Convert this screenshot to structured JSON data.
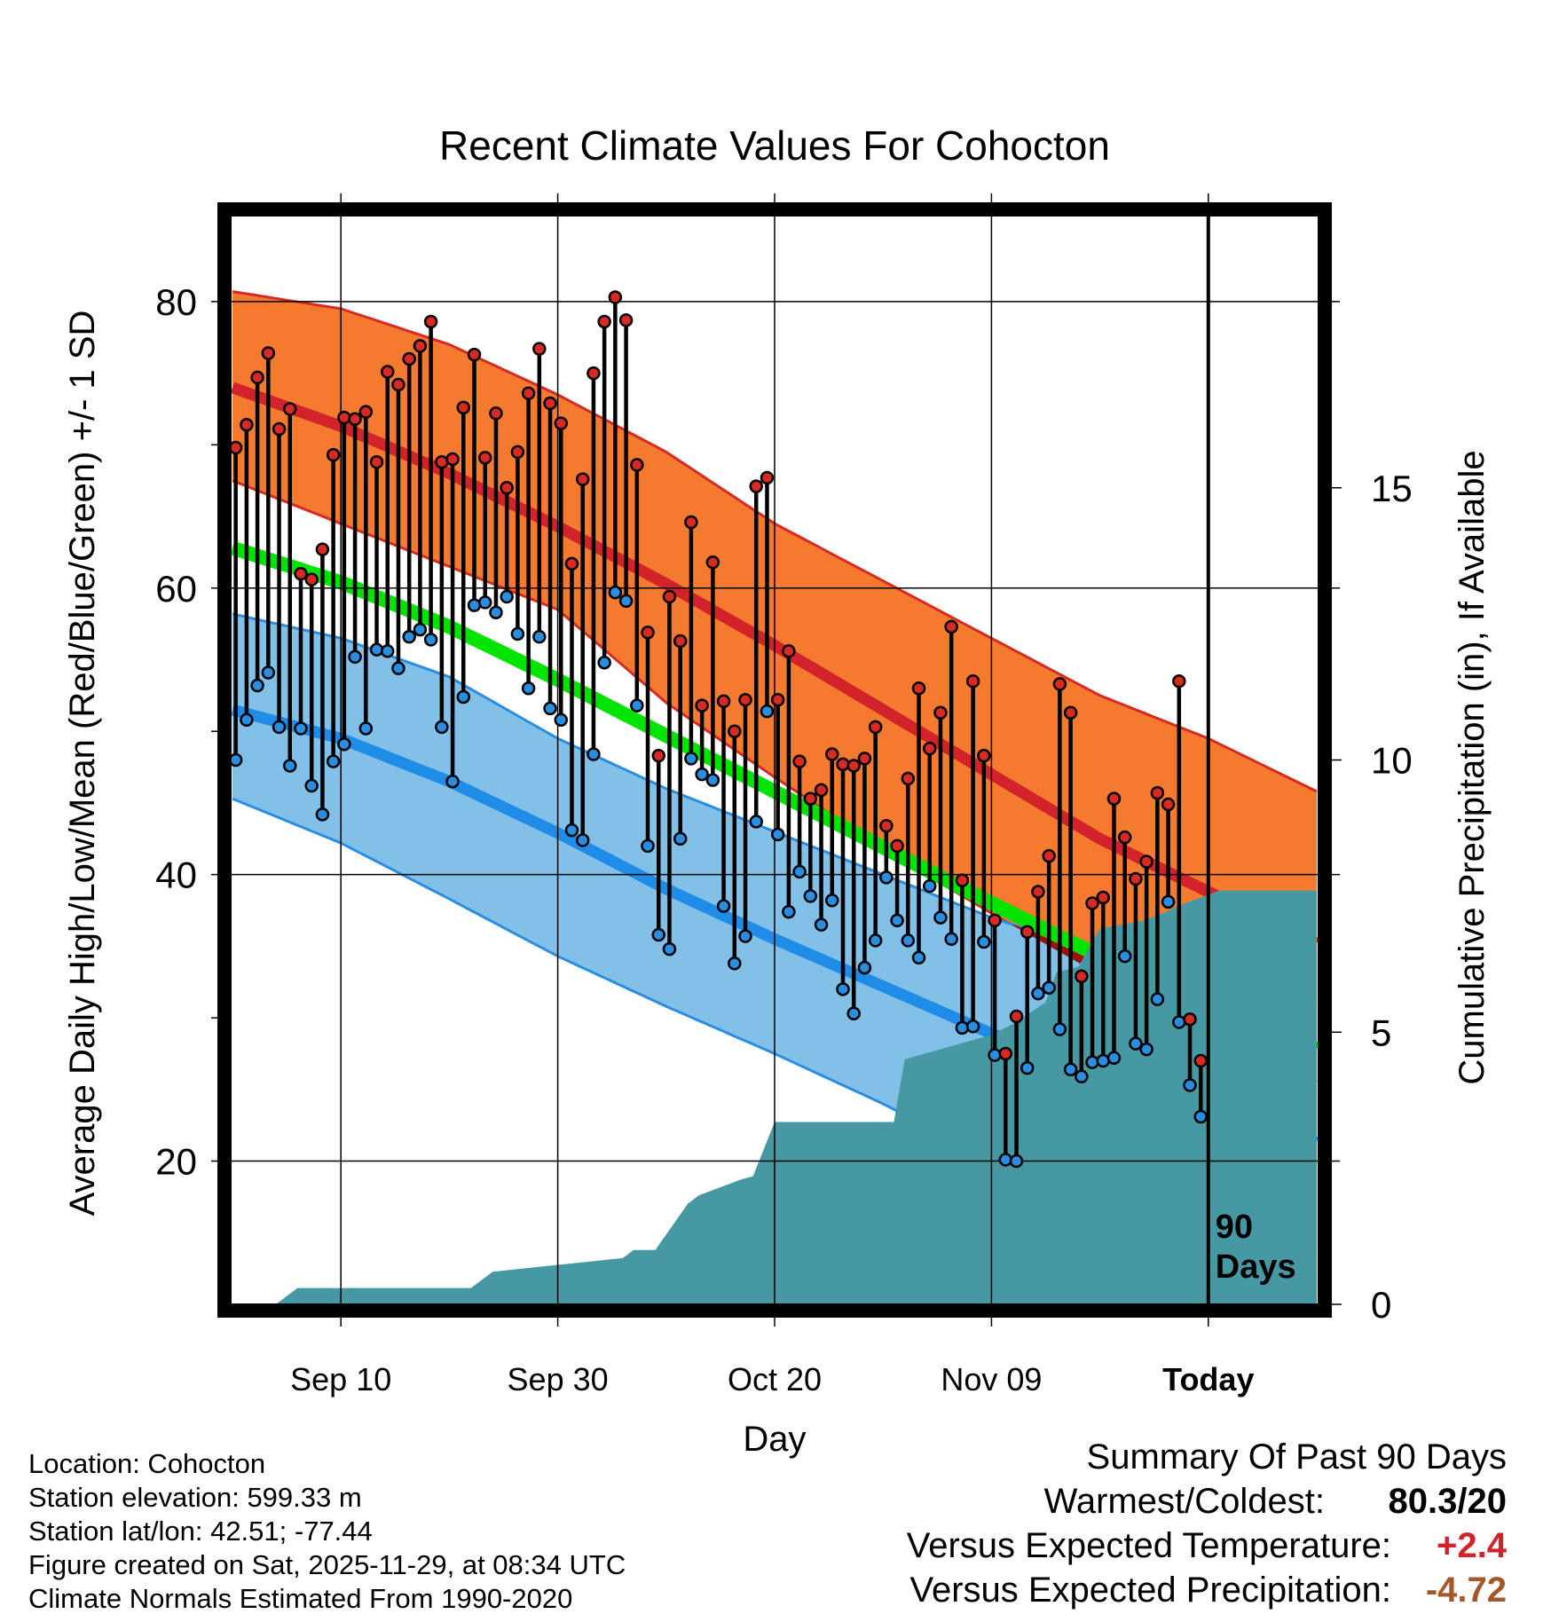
{
  "chart_data": {
    "type": "line",
    "title": "Recent Climate Values For Cohocton",
    "xlabel": "Day",
    "ylabel": "Average Daily High/Low/Mean (Red/Blue/Green) +/- 1 SD",
    "y2label": "Cumulative Precipitation (in), If Available",
    "ylim": [
      10,
      86
    ],
    "y2lim": [
      0,
      20
    ],
    "day_range": [
      0,
      100
    ],
    "x_tick_days": [
      10,
      30,
      50,
      70,
      90
    ],
    "x_tick_labels": [
      "Sep 10",
      "Sep 30",
      "Oct 20",
      "Nov 09",
      "Today"
    ],
    "y_major_ticks": [
      20,
      40,
      60,
      80
    ],
    "y2_ticks": [
      0,
      5,
      10,
      15
    ],
    "today_marker_day": 90,
    "today_marker_label": [
      "90",
      "Days"
    ],
    "normals": {
      "days": [
        0,
        10,
        20,
        30,
        40,
        50,
        60,
        70,
        80,
        90,
        100
      ],
      "high_mean": [
        74.0,
        71.3,
        68.0,
        64.3,
        60.3,
        56.0,
        51.5,
        47.0,
        42.5,
        38.8,
        35.2
      ],
      "high_upper": [
        80.7,
        79.5,
        77.0,
        73.5,
        69.5,
        64.5,
        60.5,
        56.5,
        52.5,
        49.5,
        45.8
      ],
      "high_lower": [
        67.5,
        64.5,
        61.5,
        58.5,
        52.0,
        46.8,
        41.8,
        37.3,
        33.0,
        29.2,
        25.5
      ],
      "low_mean": [
        51.5,
        49.5,
        46.5,
        42.9,
        39.0,
        35.5,
        32.2,
        28.9,
        26.0,
        23.2,
        21.3
      ],
      "low_upper": [
        58.2,
        56.5,
        53.8,
        49.5,
        46.0,
        43.0,
        40.0,
        37.0,
        34.5,
        33.0,
        31.0
      ],
      "low_lower": [
        45.3,
        42.2,
        38.3,
        34.3,
        30.8,
        27.5,
        24.0,
        20.2,
        17.5,
        15.0,
        12.8
      ],
      "mean": [
        62.8,
        60.4,
        57.3,
        53.6,
        49.7,
        45.8,
        41.9,
        38.0,
        34.3,
        31.0,
        27.8
      ]
    },
    "daily_highs": [
      69.8,
      71.4,
      74.7,
      76.4,
      71.1,
      72.5,
      61.0,
      60.6,
      62.7,
      69.3,
      71.9,
      71.8,
      72.3,
      68.8,
      75.1,
      74.2,
      76.0,
      76.9,
      78.6,
      68.8,
      69.0,
      72.6,
      76.3,
      69.1,
      72.2,
      67.0,
      69.5,
      73.6,
      76.7,
      72.9,
      71.5,
      61.7,
      67.6,
      75.0,
      78.6,
      80.3,
      78.7,
      68.6,
      56.9,
      48.3,
      59.4,
      56.3,
      64.6,
      51.8,
      61.8,
      52.1,
      50.0,
      52.2,
      67.1,
      67.7,
      52.2,
      55.6,
      47.9,
      45.3,
      45.9,
      48.4,
      47.7,
      47.6,
      48.1,
      50.3,
      43.4,
      42.0,
      46.7,
      53.0,
      48.8,
      51.3,
      57.3,
      39.6,
      53.5,
      48.3,
      36.8,
      27.5,
      30.1,
      36.0,
      38.8,
      41.3,
      53.3,
      51.3,
      32.9,
      38.0,
      38.4,
      45.3,
      42.6,
      39.7,
      40.9,
      45.7,
      44.9,
      53.5,
      29.9,
      27.0
    ],
    "daily_lows": [
      48.0,
      50.8,
      53.2,
      54.1,
      50.3,
      47.6,
      50.2,
      46.2,
      44.2,
      47.9,
      49.1,
      55.2,
      50.2,
      55.7,
      55.6,
      54.4,
      56.6,
      57.1,
      56.4,
      50.3,
      46.5,
      52.4,
      58.8,
      59.0,
      58.3,
      59.4,
      56.8,
      53.0,
      56.6,
      51.6,
      50.8,
      43.1,
      42.4,
      48.4,
      54.8,
      59.7,
      59.1,
      51.8,
      42.0,
      35.8,
      34.8,
      42.5,
      48.1,
      47.0,
      46.6,
      37.8,
      33.8,
      35.7,
      43.7,
      51.4,
      42.8,
      37.4,
      40.2,
      38.5,
      36.5,
      38.2,
      32.0,
      30.3,
      33.5,
      35.4,
      39.8,
      36.8,
      35.4,
      34.2,
      39.2,
      37.0,
      35.5,
      29.3,
      29.4,
      35.3,
      27.4,
      20.1,
      20.0,
      26.5,
      31.7,
      32.1,
      29.2,
      26.4,
      25.9,
      26.9,
      27.0,
      27.2,
      34.3,
      28.2,
      27.8,
      31.3,
      38.1,
      29.7,
      25.3,
      23.1
    ],
    "cumulative_precip_days": [
      0,
      4,
      6,
      22,
      24,
      36,
      37,
      39,
      42,
      43,
      47,
      48,
      50,
      61,
      62,
      70,
      72,
      75,
      76,
      78,
      80,
      84,
      86,
      87,
      91,
      100
    ],
    "cumulative_precip": [
      0,
      0,
      0.3,
      0.3,
      0.6,
      0.85,
      1.0,
      1.0,
      1.85,
      2.0,
      2.3,
      2.35,
      3.35,
      3.35,
      4.5,
      4.95,
      5.15,
      5.55,
      6.1,
      6.2,
      6.9,
      7.05,
      7.2,
      7.3,
      7.6,
      7.6
    ]
  },
  "station_info": {
    "location": "Location: Cohocton",
    "elevation": "Station elevation: 599.33 m",
    "latlon": "Station lat/lon: 42.51; -77.44",
    "created": "Figure created on Sat, 2025-11-29, at 08:34 UTC",
    "normals": "Climate Normals Estimated From 1990-2020"
  },
  "summary": {
    "title": "Summary Of Past 90 Days",
    "warmest_coldest_label": "Warmest/Coldest:",
    "warmest_coldest_value": "80.3/20",
    "temp_label": "Versus Expected Temperature:",
    "temp_value": "+2.4",
    "precip_label": "Versus Expected Precipitation:",
    "precip_value": "-4.72"
  },
  "colors": {
    "high_band": "#f47a30",
    "high_band_edge": "#d62a22",
    "high_mean_line": "#d2232a",
    "low_band": "#83c0e8",
    "low_band_edge": "#2a8ee0",
    "low_mean_line": "#1f8de8",
    "mean_line": "#00e400",
    "overlap_band": "#9c1010",
    "precip_fill": "#4699a3",
    "high_dot": "#d62a22",
    "low_dot": "#2a8ee0",
    "warm_value": "#d2232a",
    "precip_value": "#a4582a"
  }
}
